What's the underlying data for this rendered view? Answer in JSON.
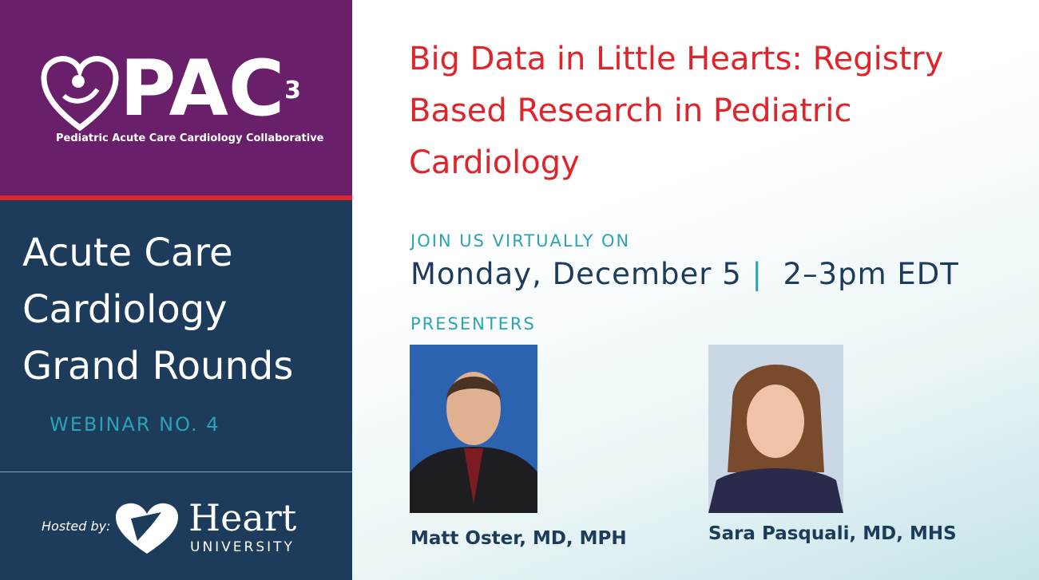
{
  "logo": {
    "mark": "PAC",
    "superscript": "3",
    "tagline": "Pediatric Acute Care Cardiology Collaborative"
  },
  "series": {
    "lines": [
      "Acute Care",
      "Cardiology",
      "Grand Rounds"
    ],
    "webinar": "WEBINAR NO. 4"
  },
  "host": {
    "label": "Hosted by:",
    "name": "Heart",
    "sub": "UNIVERSITY"
  },
  "title": {
    "lines": [
      "Big Data in Little Hearts: Registry",
      "Based Research in Pediatric",
      "Cardiology"
    ]
  },
  "event": {
    "intro": "JOIN US VIRTUALLY ON",
    "date": "Monday, December 5",
    "separator": "|",
    "time": "2–3pm EDT"
  },
  "presenters": {
    "heading": "PRESENTERS",
    "people": [
      {
        "name": "Matt Oster, MD, MPH"
      },
      {
        "name": "Sara Pasquali, MD, MHS"
      }
    ]
  }
}
